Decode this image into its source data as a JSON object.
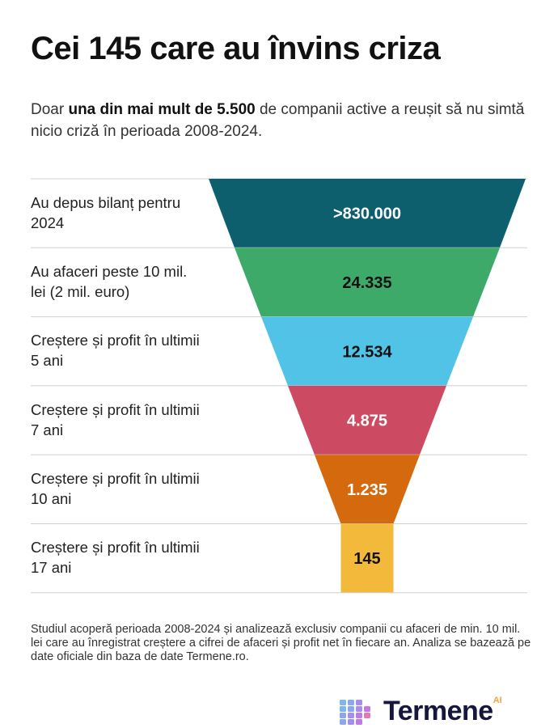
{
  "title": "Cei 145 care au învins criza",
  "subtitle": {
    "pre": "Doar ",
    "bold": "una din mai mult de 5.500",
    "post": " de companii active a reușit să nu simtă nicio criză în perioada 2008-2024."
  },
  "chart_data": {
    "type": "funnel",
    "stages": [
      {
        "label": "Au depus bilanț pentru 2024",
        "value_label": ">830.000",
        "value": 830000,
        "color": "#0e5f6e",
        "text_color": "#ffffff"
      },
      {
        "label": "Au afaceri peste 10 mil. lei (2 mil. euro)",
        "value_label": "24.335",
        "value": 24335,
        "color": "#3daa6a",
        "text_color": "#111111"
      },
      {
        "label": "Creștere și profit în ultimii 5 ani",
        "value_label": "12.534",
        "value": 12534,
        "color": "#50c3e6",
        "text_color": "#111111"
      },
      {
        "label": "Creștere și profit în ultimii 7 ani",
        "value_label": "4.875",
        "value": 4875,
        "color": "#cc4b62",
        "text_color": "#ffffff"
      },
      {
        "label": "Creștere și profit în ultimii 10 ani",
        "value_label": "1.235",
        "value": 1235,
        "color": "#d4690e",
        "text_color": "#ffffff"
      },
      {
        "label": "Creștere și profit în ultimii 17 ani",
        "value_label": "145",
        "value": 145,
        "color": "#f2b93a",
        "text_color": "#111111"
      }
    ]
  },
  "footnote": "Studiul acoperă perioada 2008-2024 și analizează exclusiv companii cu afaceri de min. 10 mil. lei care au înregistrat creștere a cifrei de afaceri și profit net în fiecare an. Analiza se bazează pe date oficiale din baza de date Termene.ro.",
  "logo": {
    "name": "Termene",
    "suffix": "AI"
  }
}
